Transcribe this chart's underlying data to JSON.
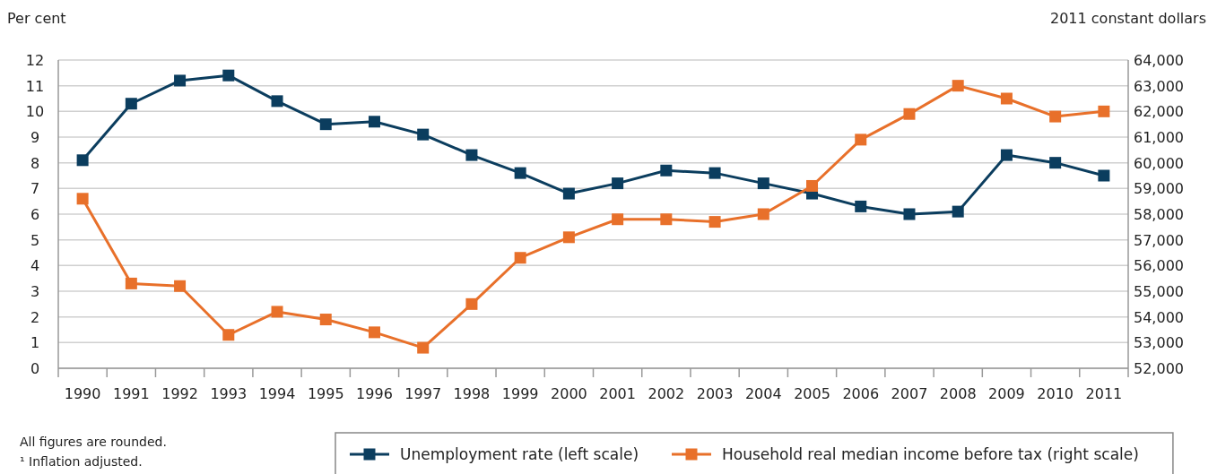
{
  "chart_data": {
    "type": "line",
    "ylabel": "Per cent",
    "y2label": "2011 constant dollars",
    "categories": [
      "1990",
      "1991",
      "1992",
      "1993",
      "1994",
      "1995",
      "1996",
      "1997",
      "1998",
      "1999",
      "2000",
      "2001",
      "2002",
      "2003",
      "2004",
      "2005",
      "2006",
      "2007",
      "2008",
      "2009",
      "2010",
      "2011"
    ],
    "series": [
      {
        "name": "Unemployment rate (left scale)",
        "color": "#0b3d5e",
        "values": [
          8.1,
          10.3,
          11.2,
          11.4,
          10.4,
          9.5,
          9.6,
          9.1,
          8.3,
          7.6,
          6.8,
          7.2,
          7.7,
          7.6,
          7.2,
          6.8,
          6.3,
          6.0,
          6.1,
          8.3,
          8.0,
          7.5
        ]
      },
      {
        "name": "Household real median income before tax (right scale)",
        "color": "#e8702a",
        "axis": "y2",
        "values": [
          58600,
          55300,
          55200,
          53300,
          54200,
          53900,
          53400,
          52800,
          54500,
          56300,
          57100,
          57800,
          57800,
          57700,
          58000,
          59100,
          60900,
          61900,
          63000,
          62500,
          61800,
          62000
        ]
      }
    ],
    "ylim": [
      0,
      12
    ],
    "yticks": [
      0,
      1,
      2,
      3,
      4,
      5,
      6,
      7,
      8,
      9,
      10,
      11,
      12
    ],
    "y2lim": [
      52000,
      64000
    ],
    "y2ticks": [
      {
        "value": 52000,
        "label": "52,000"
      },
      {
        "value": 53000,
        "label": "53,000"
      },
      {
        "value": 54000,
        "label": "54,000"
      },
      {
        "value": 55000,
        "label": "55,000"
      },
      {
        "value": 56000,
        "label": "56,000"
      },
      {
        "value": 57000,
        "label": "57,000"
      },
      {
        "value": 58000,
        "label": "58,000"
      },
      {
        "value": 59000,
        "label": "59,000"
      },
      {
        "value": 60000,
        "label": "60,000"
      },
      {
        "value": 61000,
        "label": "61,000"
      },
      {
        "value": 62000,
        "label": "62,000"
      },
      {
        "value": 63000,
        "label": "63,000"
      },
      {
        "value": 64000,
        "label": "64,000"
      }
    ],
    "grid": "y",
    "legend": "bottom",
    "marker": "square",
    "line_style": "solid",
    "annotations": [
      "All figures are rounded.",
      "¹ Inflation adjusted."
    ]
  }
}
